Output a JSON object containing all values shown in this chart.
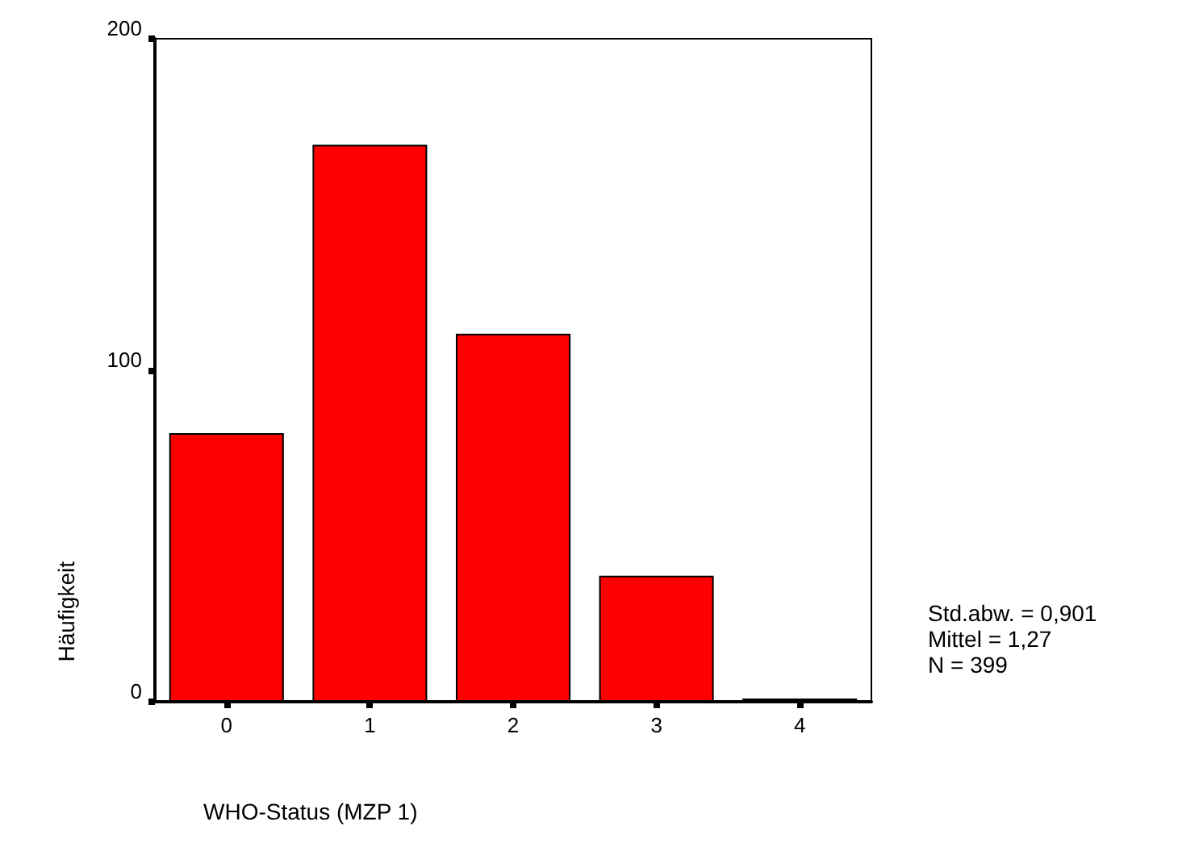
{
  "chart_data": {
    "type": "bar",
    "xlabel": "WHO-Status (MZP 1)",
    "ylabel": "Häufigkeit",
    "categories": [
      "0",
      "1",
      "2",
      "3",
      "4"
    ],
    "values": [
      81,
      168,
      111,
      38,
      1
    ],
    "color": "#ff0000",
    "ylim": [
      0,
      200
    ],
    "yticks": [
      0,
      100,
      200
    ],
    "grid": false,
    "annotations": [
      "Std.abw. = 0,901",
      "Mittel = 1,27",
      "N = 399"
    ]
  }
}
